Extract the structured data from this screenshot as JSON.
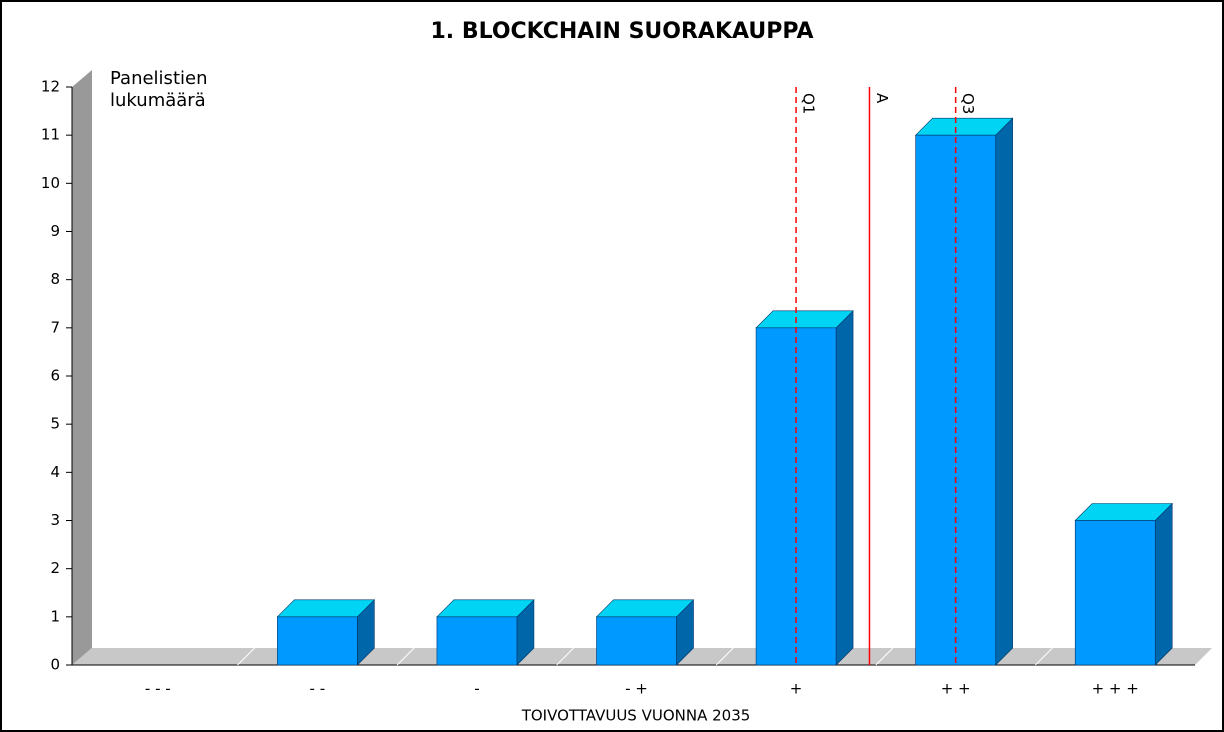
{
  "chart_data": {
    "type": "bar3d",
    "title": "1. BLOCKCHAIN SUORAKAUPPA",
    "y_label": "Panelistien lukumäärä",
    "x_label": "TOIVOTTAVUUS VUONNA 2035",
    "categories": [
      "- - -",
      "- -",
      "-",
      "- +",
      "+",
      "+ +",
      "+ + +"
    ],
    "values": [
      0,
      1,
      1,
      1,
      7,
      11,
      3
    ],
    "color": "#0099ff",
    "ylim": [
      0,
      12
    ],
    "yticks": [
      0,
      1,
      2,
      3,
      4,
      5,
      6,
      7,
      8,
      9,
      10,
      11,
      12
    ],
    "markers": [
      {
        "label": "Q1",
        "value": 5,
        "color": "#ff0000",
        "style": "dashed"
      },
      {
        "label": "A",
        "value": 5.46,
        "color": "#ff0000",
        "style": "solid"
      },
      {
        "label": "Q3",
        "value": 6,
        "color": "#ff0000",
        "style": "dashed"
      }
    ]
  }
}
